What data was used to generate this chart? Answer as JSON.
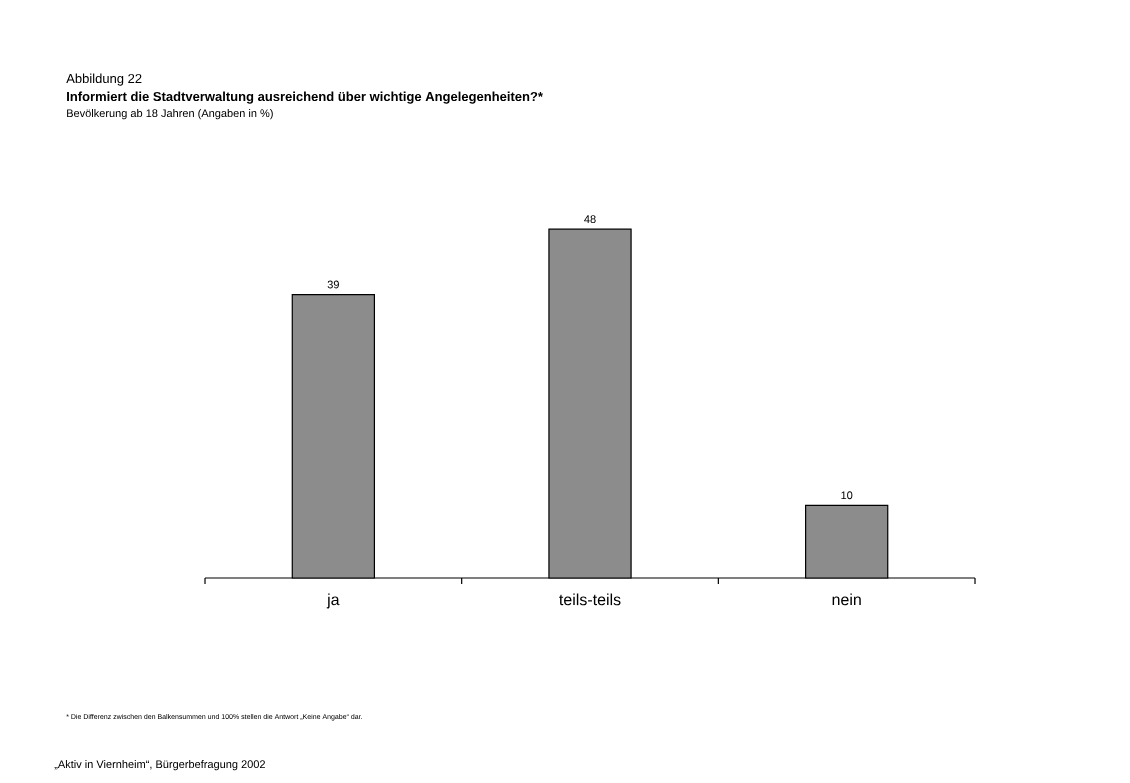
{
  "chart_data": {
    "type": "bar",
    "title": "Informiert die Stadtverwaltung ausreichend über wichtige Angelegenheiten?*",
    "subtitle": "Bevölkerung ab 18 Jahren (Angaben in %)",
    "categories": [
      "ja",
      "teils-teils",
      "nein"
    ],
    "values": [
      39,
      48,
      10
    ],
    "color": "#8c8c8c",
    "data_labels": true,
    "annotations": [
      "Abbildung 22",
      "* Die Differenz zwischen den Balkensummen und 100% stellen die Antwort „Keine Angabe“ dar.",
      "„Aktiv in Viernheim“, Bürgerbefragung 2002"
    ]
  }
}
